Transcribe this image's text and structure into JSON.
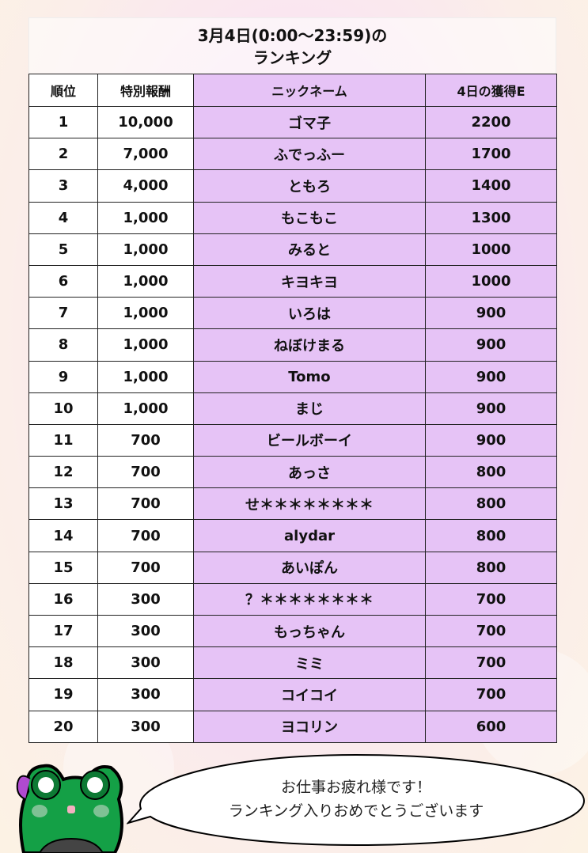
{
  "title": {
    "line1": "3月4日(0:00〜23:59)の",
    "line2": "ランキング"
  },
  "headers": {
    "rank": "順位",
    "reward": "特別報酬",
    "nickname": "ニックネーム",
    "earned": "4日の獲得E"
  },
  "rows": [
    {
      "rank": "1",
      "reward": "10,000",
      "nickname": "ゴマ子",
      "earned": "2200"
    },
    {
      "rank": "2",
      "reward": "7,000",
      "nickname": "ふでっふー",
      "earned": "1700"
    },
    {
      "rank": "3",
      "reward": "4,000",
      "nickname": "ともろ",
      "earned": "1400"
    },
    {
      "rank": "4",
      "reward": "1,000",
      "nickname": "もこもこ",
      "earned": "1300"
    },
    {
      "rank": "5",
      "reward": "1,000",
      "nickname": "みると",
      "earned": "1000"
    },
    {
      "rank": "6",
      "reward": "1,000",
      "nickname": "キヨキヨ",
      "earned": "1000"
    },
    {
      "rank": "7",
      "reward": "1,000",
      "nickname": "いろは",
      "earned": "900"
    },
    {
      "rank": "8",
      "reward": "1,000",
      "nickname": "ねぼけまる",
      "earned": "900"
    },
    {
      "rank": "9",
      "reward": "1,000",
      "nickname": "Tomo",
      "earned": "900"
    },
    {
      "rank": "10",
      "reward": "1,000",
      "nickname": "まじ",
      "earned": "900"
    },
    {
      "rank": "11",
      "reward": "700",
      "nickname": "ビールボーイ",
      "earned": "900"
    },
    {
      "rank": "12",
      "reward": "700",
      "nickname": "あっさ",
      "earned": "800"
    },
    {
      "rank": "13",
      "reward": "700",
      "nickname": "せ＊＊＊＊＊＊＊＊",
      "earned": "800"
    },
    {
      "rank": "14",
      "reward": "700",
      "nickname": "alydar",
      "earned": "800"
    },
    {
      "rank": "15",
      "reward": "700",
      "nickname": "あいぽん",
      "earned": "800"
    },
    {
      "rank": "16",
      "reward": "300",
      "nickname": "？＊＊＊＊＊＊＊＊",
      "earned": "700"
    },
    {
      "rank": "17",
      "reward": "300",
      "nickname": "もっちゃん",
      "earned": "700"
    },
    {
      "rank": "18",
      "reward": "300",
      "nickname": "ミミ",
      "earned": "700"
    },
    {
      "rank": "19",
      "reward": "300",
      "nickname": "コイコイ",
      "earned": "700"
    },
    {
      "rank": "20",
      "reward": "300",
      "nickname": "ヨコリン",
      "earned": "600"
    }
  ],
  "message": {
    "line1": "お仕事お疲れ様です！",
    "line2": "ランキング入りおめでとうございます"
  },
  "colors": {
    "highlight_column": "#e6c3f6",
    "frog": "#14a046"
  }
}
